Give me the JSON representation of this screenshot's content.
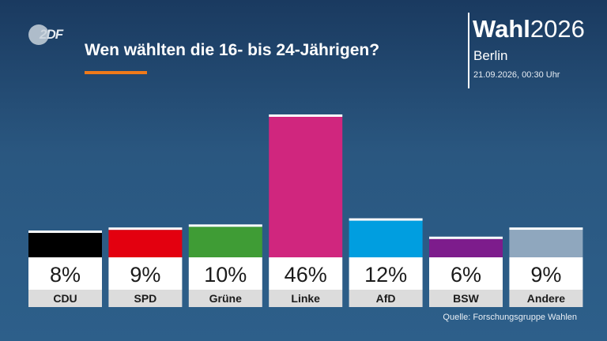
{
  "logo": {
    "text": "2DF"
  },
  "header": {
    "title": "Wen wählten die 16- bis 24-Jährigen?",
    "brand_bold": "Wahl",
    "brand_year": "2026",
    "city": "Berlin",
    "datetime": "21.09.2026, 00:30 Uhr"
  },
  "footer": {
    "source": "Quelle: Forschungsgruppe Wahlen"
  },
  "chart_data": {
    "type": "bar",
    "categories": [
      "CDU",
      "SPD",
      "Grüne",
      "Linke",
      "AfD",
      "BSW",
      "Andere"
    ],
    "values": [
      8,
      9,
      10,
      46,
      12,
      6,
      9
    ],
    "value_labels": [
      "8%",
      "9%",
      "10%",
      "46%",
      "12%",
      "6%",
      "9%"
    ],
    "colors": [
      "#000000",
      "#e3000f",
      "#3f9c35",
      "#d0267e",
      "#009ee0",
      "#7d1c8c",
      "#8fa7be"
    ],
    "ylim": [
      0,
      50
    ],
    "grid": false,
    "legend": "none"
  }
}
